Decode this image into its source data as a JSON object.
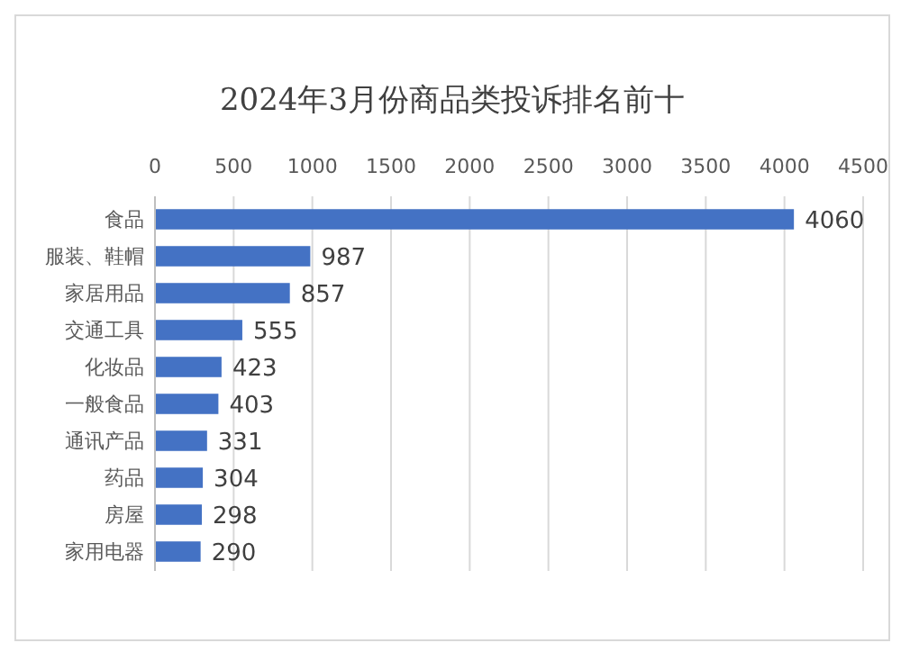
{
  "chart_data": {
    "type": "bar",
    "orientation": "horizontal",
    "title": "2024年3月份商品类投诉排名前十",
    "categories": [
      "食品",
      "服装、鞋帽",
      "家居用品",
      "交通工具",
      "化妆品",
      "一般食品",
      "通讯产品",
      "药品",
      "房屋",
      "家用电器"
    ],
    "values": [
      4060,
      987,
      857,
      555,
      423,
      403,
      331,
      304,
      298,
      290
    ],
    "color": "#4472c4",
    "xlim": [
      0,
      4500
    ],
    "xticks": [
      0,
      500,
      1000,
      1500,
      2000,
      2500,
      3000,
      3500,
      4000,
      4500
    ],
    "grid": "x",
    "data_labels": true
  }
}
